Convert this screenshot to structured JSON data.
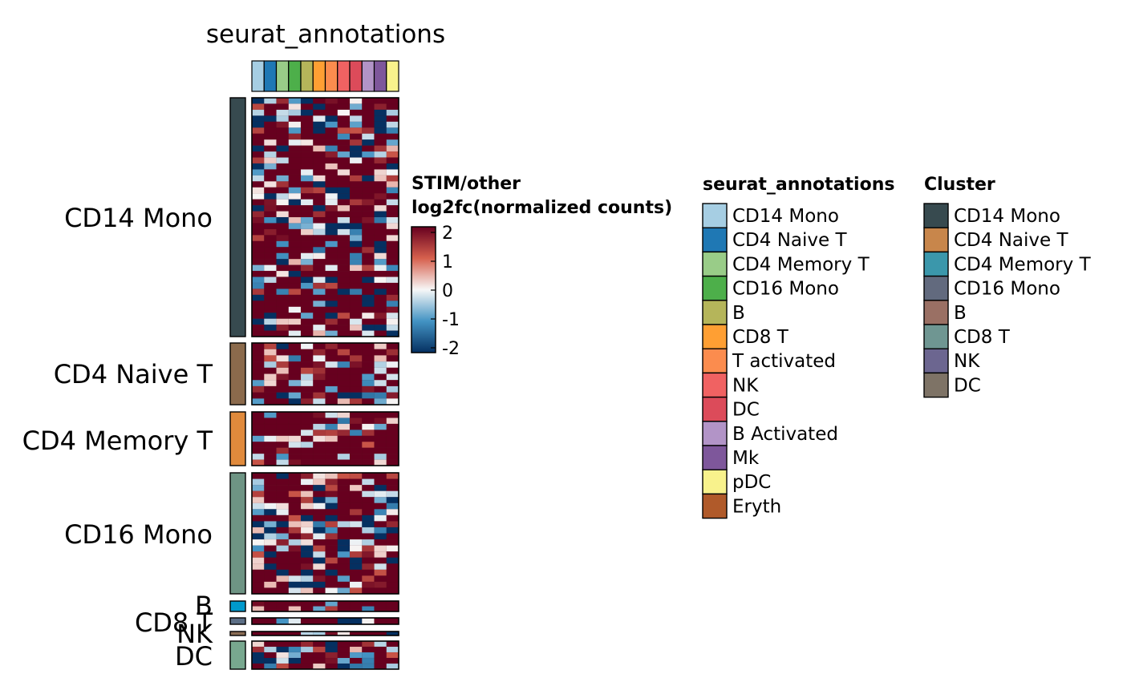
{
  "chart_data": {
    "type": "heatmap",
    "title": "seurat_annotations",
    "value_range": [
      -2,
      2
    ],
    "color_scale": {
      "title_line1": "STIM/other",
      "title_line2": "log2fc(normalized counts)",
      "ticks": [
        "2",
        "1",
        "0",
        "-1",
        "-2"
      ],
      "colors": [
        "#67001f",
        "#d6604d",
        "#f7f7f7",
        "#4393c3",
        "#053061"
      ]
    },
    "columns": {
      "annotation": "seurat_annotations",
      "colors": [
        "#a6cee3",
        "#1f78b4",
        "#99cc88",
        "#4daf4a",
        "#b5b55a",
        "#ff9f33",
        "#fb8c4e",
        "#f06262",
        "#dc4b5a",
        "#b294c7",
        "#7e579b",
        "#f8f28c"
      ]
    },
    "row_groups": [
      {
        "label": "CD14 Mono",
        "color": "#374a4f",
        "rows": 40
      },
      {
        "label": "CD4 Naive T",
        "color": "#8b6a4c",
        "rows": 10
      },
      {
        "label": "CD4 Memory T",
        "color": "#e08a3c",
        "rows": 9
      },
      {
        "label": "CD16 Mono",
        "color": "#6e9484",
        "rows": 20
      },
      {
        "label": "B",
        "color": "#0099cc",
        "rows": 2
      },
      {
        "label": "CD8 T",
        "color": "#5d6f86",
        "rows": 1
      },
      {
        "label": "NK",
        "color": "#8b6d55",
        "rows": 1
      },
      {
        "label": "DC",
        "color": "#78a88f",
        "rows": 5
      }
    ],
    "legends": [
      {
        "title": "seurat_annotations",
        "entries": [
          {
            "label": "CD14 Mono",
            "color": "#a6cee3"
          },
          {
            "label": "CD4 Naive T",
            "color": "#1f78b4"
          },
          {
            "label": "CD4 Memory T",
            "color": "#99cc88"
          },
          {
            "label": "CD16 Mono",
            "color": "#4daf4a"
          },
          {
            "label": "B",
            "color": "#b5b55a"
          },
          {
            "label": "CD8 T",
            "color": "#ff9f33"
          },
          {
            "label": "T activated",
            "color": "#fb8c4e"
          },
          {
            "label": "NK",
            "color": "#f06262"
          },
          {
            "label": "DC",
            "color": "#dc4b5a"
          },
          {
            "label": "B Activated",
            "color": "#b294c7"
          },
          {
            "label": "Mk",
            "color": "#7e579b"
          },
          {
            "label": "pDC",
            "color": "#f8f28c"
          },
          {
            "label": "Eryth",
            "color": "#b05a2a"
          }
        ]
      },
      {
        "title": "Cluster",
        "entries": [
          {
            "label": "CD14 Mono",
            "color": "#374a4f"
          },
          {
            "label": "CD4 Naive T",
            "color": "#c8864b"
          },
          {
            "label": "CD4 Memory T",
            "color": "#3b97ab"
          },
          {
            "label": "CD16 Mono",
            "color": "#626a7e"
          },
          {
            "label": "B",
            "color": "#9a7064"
          },
          {
            "label": "CD8 T",
            "color": "#6f9692"
          },
          {
            "label": "NK",
            "color": "#6c6690"
          },
          {
            "label": "DC",
            "color": "#7e7366"
          }
        ]
      }
    ]
  }
}
